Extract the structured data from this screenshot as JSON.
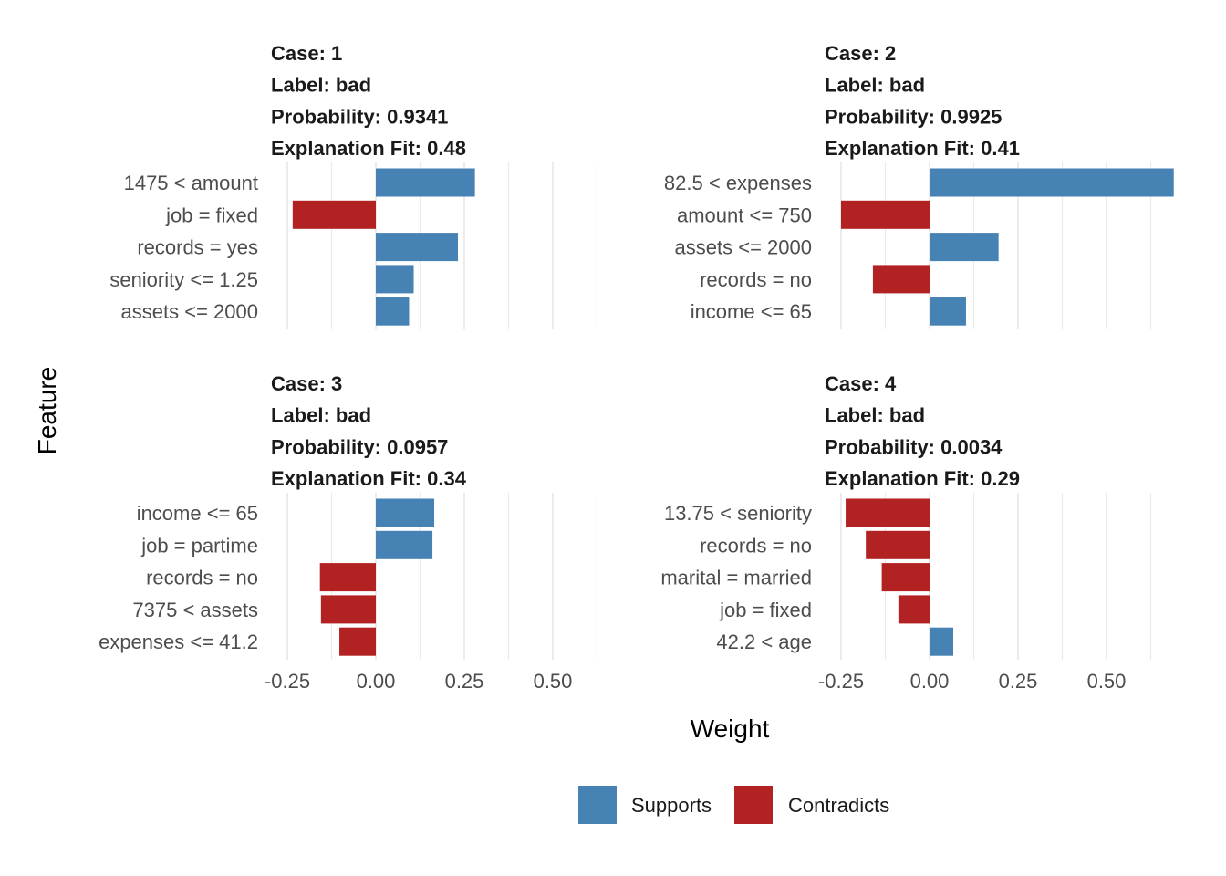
{
  "colors": {
    "supports": "#4682B4",
    "contradicts": "#B22222",
    "grid": "#ebebeb"
  },
  "chart_data": {
    "type": "bar",
    "orientation": "horizontal",
    "xlabel": "Weight",
    "ylabel": "Feature",
    "xlim": [
      -0.3,
      0.68
    ],
    "xticks": [
      -0.25,
      0.0,
      0.25,
      0.5
    ],
    "xtick_labels": [
      "-0.25",
      "0.00",
      "0.25",
      "0.50"
    ],
    "grid": true,
    "legend": {
      "position": "bottom",
      "items": [
        {
          "label": "Supports",
          "color_key": "supports"
        },
        {
          "label": "Contradicts",
          "color_key": "contradicts"
        }
      ]
    },
    "panels": [
      {
        "case": "Case: 1",
        "label": "Label: bad",
        "probability": "Probability: 0.9341",
        "fit": "Explanation Fit: 0.48",
        "features": [
          "1475 < amount",
          "job = fixed",
          "records = yes",
          "seniority <= 1.25",
          "assets <= 2000"
        ],
        "values": [
          0.28,
          -0.235,
          0.232,
          0.107,
          0.094
        ]
      },
      {
        "case": "Case: 2",
        "label": "Label: bad",
        "probability": "Probability: 0.9925",
        "fit": "Explanation Fit: 0.41",
        "features": [
          "82.5 < expenses",
          "amount <= 750",
          "assets <= 2000",
          "records = no",
          "income <= 65"
        ],
        "values": [
          0.69,
          -0.25,
          0.195,
          -0.16,
          0.103
        ]
      },
      {
        "case": "Case: 3",
        "label": "Label: bad",
        "probability": "Probability: 0.0957",
        "fit": "Explanation Fit: 0.34",
        "features": [
          "income <= 65",
          "job = partime",
          "records = no",
          "7375 < assets",
          "expenses <= 41.2"
        ],
        "values": [
          0.165,
          0.16,
          -0.158,
          -0.155,
          -0.103
        ]
      },
      {
        "case": "Case: 4",
        "label": "Label: bad",
        "probability": "Probability: 0.0034",
        "fit": "Explanation Fit: 0.29",
        "features": [
          "13.75 < seniority",
          "records = no",
          "marital = married",
          "job = fixed",
          "42.2 < age"
        ],
        "values": [
          -0.237,
          -0.18,
          -0.135,
          -0.088,
          0.067
        ]
      }
    ]
  }
}
